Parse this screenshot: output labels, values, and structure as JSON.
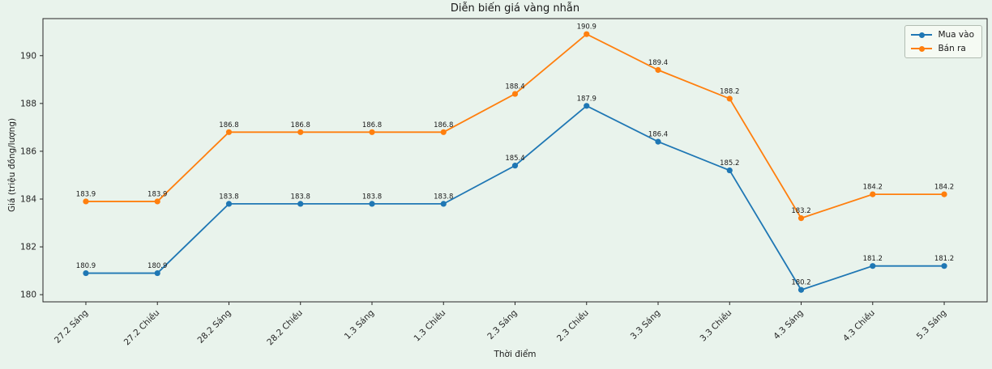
{
  "figure": {
    "background": "#e9f3ec",
    "ink_color": "#262626"
  },
  "chart_data": {
    "type": "line",
    "title": "Diễn biến giá vàng nhẫn",
    "xlabel": "Thời điểm",
    "ylabel": "Giá (triệu đồng/lượng)",
    "categories": [
      "27.2 Sáng",
      "27.2 Chiều",
      "28.2 Sáng",
      "28.2 Chiều",
      "1.3 Sáng",
      "1.3 Chiều",
      "2.3 Sáng",
      "2.3 Chiều",
      "3.3 Sáng",
      "3.3 Chiều",
      "4.3 Sáng",
      "4.3 Chiều",
      "5.3 Sáng"
    ],
    "series": [
      {
        "name": "Mua vào",
        "color": "#1f77b4",
        "values": [
          180.9,
          180.9,
          183.8,
          183.8,
          183.8,
          183.8,
          185.4,
          187.9,
          186.4,
          185.2,
          180.2,
          181.2,
          181.2
        ]
      },
      {
        "name": "Bán ra",
        "color": "#ff7f0e",
        "values": [
          183.9,
          183.9,
          186.8,
          186.8,
          186.8,
          186.8,
          188.4,
          190.9,
          189.4,
          188.2,
          183.2,
          184.2,
          184.2
        ]
      }
    ],
    "yticks": [
      180,
      182,
      184,
      186,
      188,
      190
    ],
    "ylim": [
      179.7,
      191.55
    ],
    "grid": false,
    "legend_position": "upper right",
    "marker": "circle",
    "value_labels_shown": true
  }
}
